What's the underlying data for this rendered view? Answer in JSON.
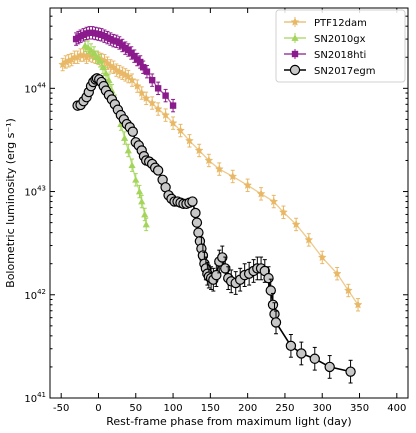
{
  "chart_data": {
    "type": "scatter",
    "xlabel": "Rest-frame phase from maximum light (day)",
    "ylabel": "Bolometric luminosity (erg s⁻¹)",
    "xlim": [
      -65,
      415
    ],
    "ylim": [
      1e+41,
      6e+44
    ],
    "yscale": "log",
    "xticks": [
      -50,
      0,
      50,
      100,
      150,
      200,
      250,
      300,
      350,
      400
    ],
    "yticks": [
      {
        "value": 1e+41,
        "label": "10^41"
      },
      {
        "value": 1e+42,
        "label": "10^42"
      },
      {
        "value": 1e+43,
        "label": "10^43"
      },
      {
        "value": 1e+44,
        "label": "10^44"
      }
    ],
    "legend_position": "top-right",
    "series": [
      {
        "name": "PTF12dam",
        "color": "#e8b866",
        "marker": "star",
        "points": [
          [
            -48,
            1.7e+44
          ],
          [
            -44,
            1.8e+44
          ],
          [
            -40,
            1.85e+44
          ],
          [
            -36,
            1.9e+44
          ],
          [
            -32,
            2e+44
          ],
          [
            -28,
            2e+44
          ],
          [
            -24,
            2.1e+44
          ],
          [
            -20,
            2.1e+44
          ],
          [
            -16,
            2e+44
          ],
          [
            -12,
            2.1e+44
          ],
          [
            -8,
            2.05e+44
          ],
          [
            -4,
            2e+44
          ],
          [
            0,
            1.95e+44
          ],
          [
            4,
            1.9e+44
          ],
          [
            8,
            1.85e+44
          ],
          [
            12,
            1.75e+44
          ],
          [
            16,
            1.65e+44
          ],
          [
            20,
            1.6e+44
          ],
          [
            24,
            1.5e+44
          ],
          [
            28,
            1.45e+44
          ],
          [
            32,
            1.4e+44
          ],
          [
            36,
            1.35e+44
          ],
          [
            40,
            1.3e+44
          ],
          [
            45,
            1.2e+44
          ],
          [
            52,
            1.05e+44
          ],
          [
            58,
            9e+43
          ],
          [
            64,
            8e+43
          ],
          [
            72,
            7.2e+43
          ],
          [
            80,
            6.3e+43
          ],
          [
            90,
            5.5e+43
          ],
          [
            100,
            4.6e+43
          ],
          [
            110,
            3.9e+43
          ],
          [
            122,
            3.1e+43
          ],
          [
            135,
            2.5e+43
          ],
          [
            148,
            2e+43
          ],
          [
            162,
            1.65e+43
          ],
          [
            180,
            1.4e+43
          ],
          [
            200,
            1.15e+43
          ],
          [
            218,
            9.5e+42
          ],
          [
            235,
            8e+42
          ],
          [
            248,
            6.3e+42
          ],
          [
            265,
            4.8e+42
          ],
          [
            282,
            3.4e+42
          ],
          [
            300,
            2.3e+42
          ],
          [
            320,
            1.6e+42
          ],
          [
            335,
            1.1e+42
          ],
          [
            348,
            8e+41
          ]
        ]
      },
      {
        "name": "SN2010gx",
        "color": "#a3d55a",
        "marker": "triangle",
        "points": [
          [
            -18,
            2.6e+44
          ],
          [
            -14,
            2.5e+44
          ],
          [
            -10,
            2.35e+44
          ],
          [
            -6,
            2.2e+44
          ],
          [
            -2,
            2e+44
          ],
          [
            2,
            1.85e+44
          ],
          [
            6,
            1.6e+44
          ],
          [
            10,
            1.4e+44
          ],
          [
            14,
            1.2e+44
          ],
          [
            18,
            9.5e+43
          ],
          [
            22,
            7.5e+43
          ],
          [
            26,
            6e+43
          ],
          [
            30,
            4.5e+43
          ],
          [
            35,
            3.3e+43
          ],
          [
            40,
            2.5e+43
          ],
          [
            45,
            1.8e+43
          ],
          [
            50,
            1.3e+43
          ],
          [
            55,
            1e+43
          ],
          [
            58,
            8e+42
          ],
          [
            62,
            6e+42
          ],
          [
            64,
            4.8e+42
          ]
        ]
      },
      {
        "name": "SN2018hti",
        "color": "#8b1a8c",
        "marker": "square",
        "points": [
          [
            -30,
            3e+44
          ],
          [
            -27,
            3.1e+44
          ],
          [
            -24,
            3.2e+44
          ],
          [
            -20,
            3.3e+44
          ],
          [
            -16,
            3.4e+44
          ],
          [
            -12,
            3.45e+44
          ],
          [
            -8,
            3.45e+44
          ],
          [
            -4,
            3.4e+44
          ],
          [
            0,
            3.35e+44
          ],
          [
            4,
            3.3e+44
          ],
          [
            8,
            3.2e+44
          ],
          [
            12,
            3.1e+44
          ],
          [
            16,
            3e+44
          ],
          [
            20,
            2.9e+44
          ],
          [
            24,
            2.85e+44
          ],
          [
            28,
            2.75e+44
          ],
          [
            32,
            2.6e+44
          ],
          [
            36,
            2.45e+44
          ],
          [
            40,
            2.35e+44
          ],
          [
            44,
            2.2e+44
          ],
          [
            48,
            2.05e+44
          ],
          [
            52,
            1.9e+44
          ],
          [
            56,
            1.8e+44
          ],
          [
            60,
            1.6e+44
          ],
          [
            65,
            1.45e+44
          ],
          [
            72,
            1.2e+44
          ],
          [
            80,
            1e+44
          ],
          [
            90,
            8.5e+43
          ],
          [
            100,
            6.8e+43
          ]
        ]
      },
      {
        "name": "SN2017egm",
        "color": "#c8c8c8",
        "marker": "circle",
        "points": [
          [
            -28,
            6.8e+43
          ],
          [
            -24,
            6.9e+43
          ],
          [
            -20,
            7.5e+43
          ],
          [
            -16,
            8.2e+43
          ],
          [
            -13,
            9.2e+43
          ],
          [
            -10,
            1.05e+44
          ],
          [
            -7,
            1.15e+44
          ],
          [
            -4,
            1.22e+44
          ],
          [
            -2,
            1.25e+44
          ],
          [
            1,
            1.22e+44
          ],
          [
            4,
            1.15e+44
          ],
          [
            7,
            1.05e+44
          ],
          [
            10,
            9.5e+43
          ],
          [
            14,
            8.6e+43
          ],
          [
            18,
            7.8e+43
          ],
          [
            22,
            7e+43
          ],
          [
            26,
            6.2e+43
          ],
          [
            30,
            5.5e+43
          ],
          [
            34,
            5e+43
          ],
          [
            38,
            4.5e+43
          ],
          [
            42,
            4.2e+43
          ],
          [
            46,
            3.8e+43
          ],
          [
            50,
            3e+43
          ],
          [
            54,
            2.8e+43
          ],
          [
            58,
            2.5e+43
          ],
          [
            61,
            2.2e+43
          ],
          [
            64,
            2e+43
          ],
          [
            68,
            1.95e+43
          ],
          [
            72,
            1.85e+43
          ],
          [
            76,
            1.7e+43
          ],
          [
            80,
            1.6e+43
          ],
          [
            86,
            1.3e+43
          ],
          [
            90,
            1.1e+43
          ],
          [
            94,
            9.2e+42
          ],
          [
            98,
            8.5e+42
          ],
          [
            102,
            8e+42
          ],
          [
            106,
            8e+42
          ],
          [
            110,
            7.8e+42
          ],
          [
            114,
            7.6e+42
          ],
          [
            118,
            7.6e+42
          ],
          [
            122,
            7.8e+42
          ],
          [
            126,
            8e+42
          ],
          [
            130,
            6.2e+42
          ],
          [
            132,
            5e+42
          ],
          [
            134,
            4e+42
          ],
          [
            136,
            3.3e+42
          ],
          [
            138,
            2.8e+42
          ],
          [
            140,
            2.4e+42
          ],
          [
            142,
            2e+42
          ],
          [
            144,
            1.8e+42
          ],
          [
            146,
            1.6e+42
          ],
          [
            148,
            1.5e+42
          ],
          [
            151,
            1.45e+42
          ],
          [
            154,
            1.4e+42
          ],
          [
            158,
            1.55e+42
          ],
          [
            162,
            2.1e+42
          ],
          [
            166,
            2.3e+42
          ],
          [
            170,
            1.8e+42
          ],
          [
            174,
            1.45e+42
          ],
          [
            178,
            1.35e+42
          ],
          [
            184,
            1.3e+42
          ],
          [
            190,
            1.4e+42
          ],
          [
            196,
            1.55e+42
          ],
          [
            202,
            1.6e+42
          ],
          [
            208,
            1.7e+42
          ],
          [
            213,
            1.8e+42
          ],
          [
            218,
            1.8e+42
          ],
          [
            223,
            1.7e+42
          ],
          [
            228,
            1.45e+42
          ],
          [
            231,
            1.1e+42
          ],
          [
            234,
            8e+41
          ],
          [
            236,
            6.5e+41
          ],
          [
            238,
            5.4e+41
          ],
          [
            258,
            3.2e+41
          ],
          [
            272,
            2.7e+41
          ],
          [
            290,
            2.4e+41
          ],
          [
            310,
            2e+41
          ],
          [
            338,
            1.8e+41
          ]
        ]
      }
    ]
  }
}
